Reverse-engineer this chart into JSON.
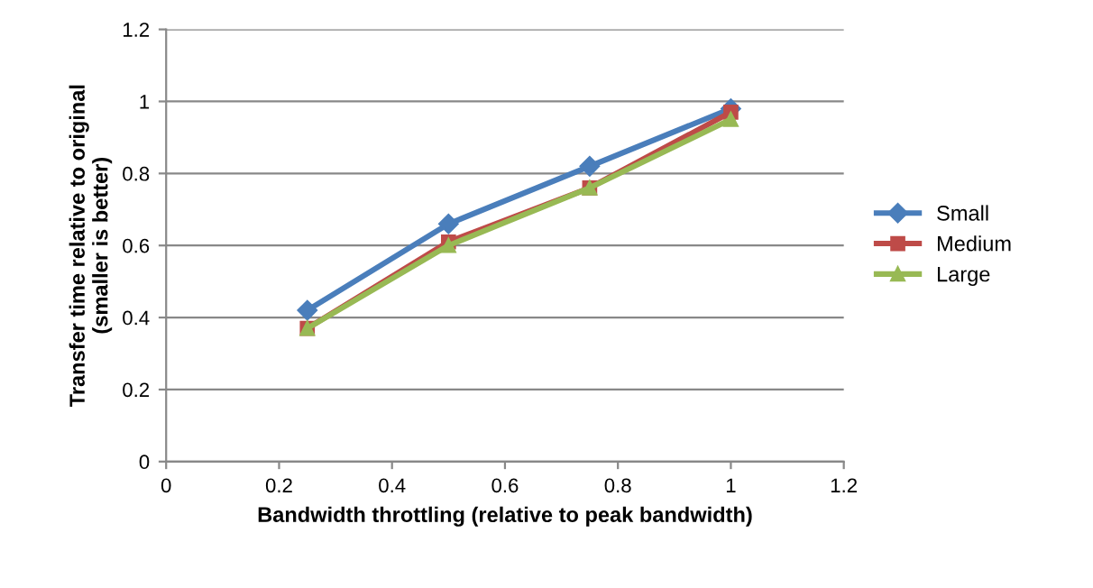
{
  "chart_data": {
    "type": "line",
    "xlabel": "Bandwidth throttling (relative to peak bandwidth)",
    "ylabel": "Transfer time relative to original\n(smaller is better)",
    "x": [
      0.25,
      0.5,
      0.75,
      1
    ],
    "series": [
      {
        "name": "Small",
        "color": "#4a7ebb",
        "values": [
          0.42,
          0.66,
          0.82,
          0.98
        ],
        "marker": "diamond"
      },
      {
        "name": "Medium",
        "color": "#be4b48",
        "values": [
          0.37,
          0.61,
          0.76,
          0.97
        ],
        "marker": "square"
      },
      {
        "name": "Large",
        "color": "#98b954",
        "values": [
          0.37,
          0.6,
          0.76,
          0.95
        ],
        "marker": "triangle"
      }
    ],
    "xlim": [
      0,
      1.2
    ],
    "xticks": [
      0,
      0.2,
      0.4,
      0.6,
      0.8,
      1,
      1.2
    ],
    "ylim": [
      0,
      1.2
    ],
    "yticks": [
      0,
      0.2,
      0.4,
      0.6,
      0.8,
      1,
      1.2
    ],
    "grid": "y",
    "legend": "right",
    "line_style": "solid"
  }
}
